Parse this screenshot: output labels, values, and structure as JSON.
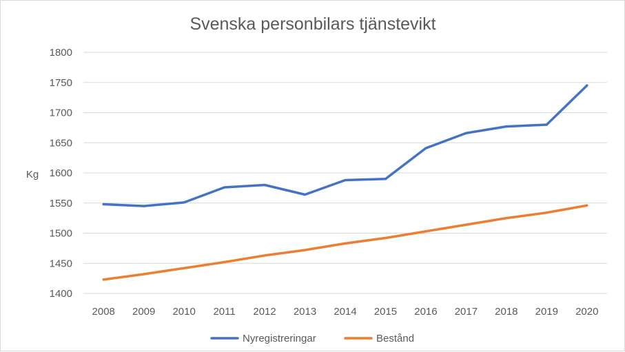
{
  "chart_data": {
    "type": "line",
    "title": "Svenska personbilars tjänstevikt",
    "xlabel": "",
    "ylabel": "Kg",
    "ylim": [
      1400,
      1800
    ],
    "yticks": [
      1400,
      1450,
      1500,
      1550,
      1600,
      1650,
      1700,
      1750,
      1800
    ],
    "categories": [
      "2008",
      "2009",
      "2010",
      "2011",
      "2012",
      "2013",
      "2014",
      "2015",
      "2016",
      "2017",
      "2018",
      "2019",
      "2020"
    ],
    "grid": true,
    "legend_position": "bottom",
    "series": [
      {
        "name": "Nyregistreringar",
        "color": "#4472C4",
        "values": [
          1548,
          1545,
          1551,
          1576,
          1580,
          1564,
          1588,
          1590,
          1641,
          1666,
          1677,
          1680,
          1745
        ]
      },
      {
        "name": "Bestånd",
        "color": "#ED7D31",
        "values": [
          1423,
          1432,
          1442,
          1452,
          1463,
          1472,
          1483,
          1492,
          1503,
          1514,
          1525,
          1534,
          1546
        ]
      }
    ]
  }
}
